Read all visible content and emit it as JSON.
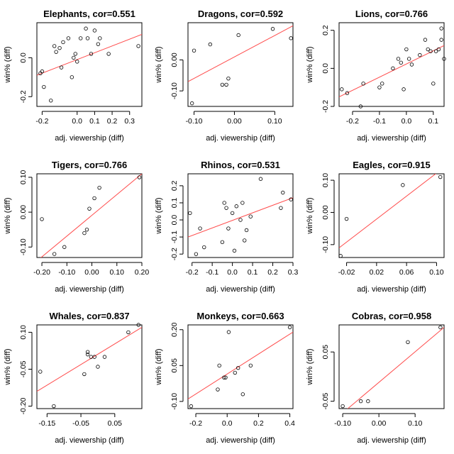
{
  "chart_data": [
    {
      "type": "scatter",
      "title": "Elephants, cor=0.551",
      "xlabel": "adj. viewership (diff)",
      "ylabel": "win% (diff)",
      "xlim": [
        -0.23,
        0.37
      ],
      "ylim": [
        -0.25,
        0.18
      ],
      "xticks": [
        -0.2,
        0.0,
        0.1,
        0.2,
        0.3
      ],
      "xtick_labels": [
        "-0.2",
        "0.0",
        "0.1",
        "0.2",
        "0.3"
      ],
      "yticks": [
        -0.2,
        0.0
      ],
      "ytick_labels": [
        "-0.2",
        "0.0"
      ],
      "x": [
        -0.21,
        -0.2,
        -0.19,
        -0.15,
        -0.13,
        -0.12,
        -0.1,
        -0.09,
        -0.08,
        -0.05,
        -0.03,
        -0.02,
        -0.01,
        0.0,
        0.02,
        0.05,
        0.06,
        0.08,
        0.1,
        0.12,
        0.13,
        0.18,
        0.35
      ],
      "y": [
        -0.08,
        -0.07,
        -0.15,
        -0.22,
        0.06,
        0.03,
        0.05,
        -0.05,
        0.08,
        0.1,
        -0.1,
        0.0,
        0.02,
        -0.02,
        0.1,
        0.15,
        0.1,
        0.02,
        0.14,
        0.07,
        0.1,
        0.02,
        0.06
      ],
      "fit_line": [
        [
          -0.23,
          -0.09
        ],
        [
          0.37,
          0.12
        ]
      ]
    },
    {
      "type": "scatter",
      "title": "Dragons, cor=0.592",
      "xlabel": "adj. viewership (diff)",
      "ylabel": "win% (diff)",
      "xlim": [
        -0.115,
        0.145
      ],
      "ylim": [
        -0.15,
        0.12
      ],
      "xticks": [
        -0.1,
        0.0,
        0.1
      ],
      "xtick_labels": [
        "-0.10",
        "0.00",
        "0.10"
      ],
      "yticks": [
        -0.1,
        0.0
      ],
      "ytick_labels": [
        "-0.10",
        "0.00"
      ],
      "x": [
        -0.105,
        -0.1,
        -0.06,
        -0.03,
        -0.02,
        -0.015,
        0.01,
        0.095,
        0.14
      ],
      "y": [
        -0.14,
        0.03,
        0.05,
        -0.08,
        -0.08,
        -0.06,
        0.08,
        0.1,
        0.07
      ],
      "fit_line": [
        [
          -0.115,
          -0.07
        ],
        [
          0.145,
          0.11
        ]
      ]
    },
    {
      "type": "scatter",
      "title": "Lions, cor=0.766",
      "xlabel": "adj. viewership (diff)",
      "ylabel": "win% (diff)",
      "xlim": [
        -0.25,
        0.14
      ],
      "ylim": [
        -0.2,
        0.24
      ],
      "xticks": [
        -0.2,
        -0.1,
        0.0,
        0.1
      ],
      "xtick_labels": [
        "-0.2",
        "-0.1",
        "0.0",
        "0.1"
      ],
      "yticks": [
        -0.2,
        0.0,
        0.2
      ],
      "ytick_labels": [
        "-0.2",
        "0.0",
        "0.2"
      ],
      "x": [
        -0.24,
        -0.22,
        -0.17,
        -0.16,
        -0.1,
        -0.09,
        -0.05,
        -0.03,
        -0.02,
        -0.01,
        0.0,
        0.01,
        0.02,
        0.05,
        0.07,
        0.08,
        0.09,
        0.1,
        0.11,
        0.12,
        0.13,
        0.13,
        0.14
      ],
      "y": [
        -0.11,
        -0.13,
        -0.2,
        -0.08,
        -0.1,
        -0.08,
        0.0,
        0.05,
        0.03,
        -0.11,
        0.1,
        0.05,
        0.02,
        0.07,
        0.15,
        0.1,
        0.09,
        -0.08,
        0.09,
        0.1,
        0.21,
        0.15,
        0.05
      ],
      "fit_line": [
        [
          -0.25,
          -0.15
        ],
        [
          0.14,
          0.12
        ]
      ]
    },
    {
      "type": "scatter",
      "title": "Tigers, cor=0.766",
      "xlabel": "adj. viewership (diff)",
      "ylabel": "win% (diff)",
      "xlim": [
        -0.22,
        0.2
      ],
      "ylim": [
        -0.13,
        0.11
      ],
      "xticks": [
        -0.2,
        -0.1,
        0.0,
        0.1,
        0.2
      ],
      "xtick_labels": [
        "-0.20",
        "-0.10",
        "0.00",
        "0.10",
        "0.20"
      ],
      "yticks": [
        -0.1,
        0.0,
        0.1
      ],
      "ytick_labels": [
        "-0.10",
        "0.00",
        "0.10"
      ],
      "x": [
        -0.2,
        -0.15,
        -0.11,
        -0.03,
        -0.02,
        -0.01,
        0.01,
        0.03,
        0.19
      ],
      "y": [
        -0.02,
        -0.12,
        -0.1,
        -0.06,
        -0.05,
        0.01,
        0.04,
        0.07,
        0.1
      ],
      "fit_line": [
        [
          -0.22,
          -0.14
        ],
        [
          0.2,
          0.11
        ]
      ]
    },
    {
      "type": "scatter",
      "title": "Rhinos, cor=0.531",
      "xlabel": "adj. viewership (diff)",
      "ylabel": "win% (diff)",
      "xlim": [
        -0.22,
        0.3
      ],
      "ylim": [
        -0.22,
        0.27
      ],
      "xticks": [
        -0.2,
        -0.1,
        0.0,
        0.1,
        0.2,
        0.3
      ],
      "xtick_labels": [
        "-0.2",
        "-0.1",
        "0.0",
        "0.1",
        "0.2",
        "0.3"
      ],
      "yticks": [
        -0.2,
        -0.1,
        0.0,
        0.1,
        0.2
      ],
      "ytick_labels": [
        "-0.2",
        "-0.1",
        "0.0",
        "0.1",
        "0.2"
      ],
      "x": [
        -0.21,
        -0.18,
        -0.16,
        -0.14,
        -0.05,
        -0.04,
        -0.03,
        -0.02,
        0.0,
        0.01,
        0.02,
        0.04,
        0.05,
        0.06,
        0.07,
        0.09,
        0.14,
        0.24,
        0.25,
        0.29
      ],
      "y": [
        0.04,
        -0.2,
        -0.05,
        -0.16,
        -0.13,
        0.1,
        0.07,
        -0.05,
        0.04,
        -0.18,
        0.08,
        0.0,
        0.1,
        -0.12,
        -0.06,
        0.02,
        0.24,
        0.07,
        0.16,
        0.12
      ],
      "fit_line": [
        [
          -0.22,
          -0.1
        ],
        [
          0.3,
          0.13
        ]
      ]
    },
    {
      "type": "scatter",
      "title": "Eagles, cor=0.915",
      "xlabel": "adj. viewership (diff)",
      "ylabel": "win% (diff)",
      "xlim": [
        -0.03,
        0.11
      ],
      "ylim": [
        -0.14,
        0.12
      ],
      "xticks": [
        -0.02,
        0.02,
        0.06,
        0.1
      ],
      "xtick_labels": [
        "-0.02",
        "0.02",
        "0.06",
        "0.10"
      ],
      "yticks": [
        -0.1,
        0.0,
        0.1
      ],
      "ytick_labels": [
        "-0.10",
        "0.00",
        "0.10"
      ],
      "x": [
        -0.028,
        -0.02,
        0.055,
        0.105
      ],
      "y": [
        -0.135,
        -0.02,
        0.085,
        0.11
      ],
      "fit_line": [
        [
          -0.03,
          -0.11
        ],
        [
          0.11,
          0.14
        ]
      ]
    },
    {
      "type": "scatter",
      "title": "Whales, cor=0.837",
      "xlabel": "adj. viewership (diff)",
      "ylabel": "win% (diff)",
      "xlim": [
        -0.18,
        0.13
      ],
      "ylim": [
        -0.21,
        0.13
      ],
      "xticks": [
        -0.15,
        -0.05,
        0.05
      ],
      "xtick_labels": [
        "-0.15",
        "-0.05",
        "0.05"
      ],
      "yticks": [
        -0.2,
        -0.05,
        0.1
      ],
      "ytick_labels": [
        "-0.20",
        "-0.05",
        "0.10"
      ],
      "x": [
        -0.17,
        -0.13,
        -0.04,
        -0.03,
        -0.03,
        -0.02,
        -0.01,
        0.0,
        0.02,
        0.09,
        0.12
      ],
      "y": [
        -0.06,
        -0.2,
        -0.07,
        0.02,
        0.01,
        0.0,
        0.0,
        -0.04,
        0.0,
        0.1,
        0.13
      ],
      "fit_line": [
        [
          -0.18,
          -0.14
        ],
        [
          0.13,
          0.12
        ]
      ]
    },
    {
      "type": "scatter",
      "title": "Monkeys, cor=0.663",
      "xlabel": "adj. viewership (diff)",
      "ylabel": "win% (diff)",
      "xlim": [
        -0.25,
        0.42
      ],
      "ylim": [
        -0.13,
        0.22
      ],
      "xticks": [
        -0.2,
        0.0,
        0.2,
        0.4
      ],
      "xtick_labels": [
        "-0.2",
        "0.0",
        "0.2",
        "0.4"
      ],
      "yticks": [
        -0.1,
        0.05,
        0.2
      ],
      "ytick_labels": [
        "-0.10",
        "0.05",
        "0.20"
      ],
      "x": [
        -0.23,
        -0.06,
        -0.05,
        -0.02,
        -0.01,
        0.01,
        0.05,
        0.07,
        0.1,
        0.15,
        0.4
      ],
      "y": [
        -0.12,
        -0.05,
        0.05,
        0.0,
        0.0,
        0.19,
        0.02,
        0.04,
        -0.07,
        0.05,
        0.21
      ],
      "fit_line": [
        [
          -0.25,
          -0.09
        ],
        [
          0.42,
          0.19
        ]
      ]
    },
    {
      "type": "scatter",
      "title": "Cobras, cor=0.958",
      "xlabel": "adj. viewership (diff)",
      "ylabel": "win% (diff)",
      "xlim": [
        -0.11,
        0.18
      ],
      "ylim": [
        -0.065,
        0.105
      ],
      "xticks": [
        -0.1,
        0.0,
        0.1
      ],
      "xtick_labels": [
        "-0.10",
        "0.00",
        "0.10"
      ],
      "yticks": [
        -0.05,
        0.05
      ],
      "ytick_labels": [
        "-0.05",
        "0.05"
      ],
      "x": [
        -0.1,
        -0.05,
        -0.03,
        0.08,
        0.17
      ],
      "y": [
        -0.06,
        -0.05,
        -0.05,
        0.07,
        0.1
      ],
      "fit_line": [
        [
          -0.11,
          -0.08
        ],
        [
          0.18,
          0.1
        ]
      ]
    }
  ]
}
